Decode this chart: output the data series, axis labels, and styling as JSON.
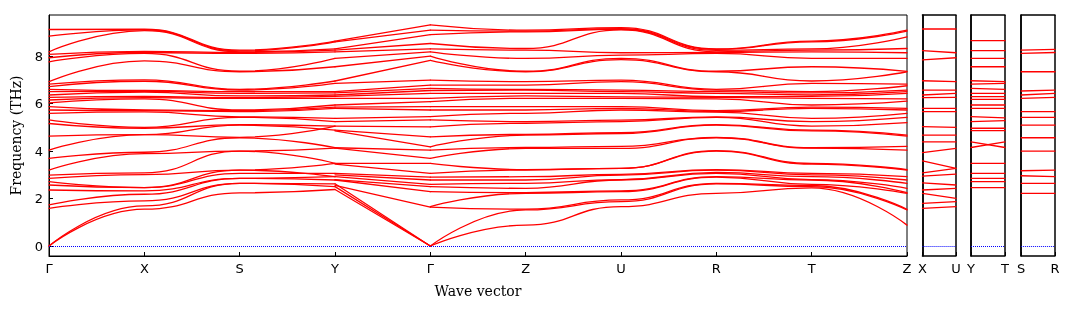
{
  "chart_data": [
    {
      "type": "line",
      "xlabel": "Wave vector",
      "ylabel": "Frequency (THz)",
      "categories": [
        "Γ",
        "X",
        "S",
        "Y",
        "Γ",
        "Z",
        "U",
        "R",
        "T",
        "Z"
      ],
      "ylim": [
        -0.42,
        9.73
      ],
      "yticks": [
        0,
        2,
        4,
        6,
        8
      ],
      "grid": false,
      "ref_lines": [
        {
          "axis": "y",
          "value": 0,
          "color": "#0000ff",
          "line_style": "dotted"
        }
      ],
      "series": [
        {
          "color": "#ff0000",
          "values": [
            0,
            1.55,
            2.24,
            2.38,
            null,
            null,
            null,
            null,
            null,
            null
          ]
        },
        {
          "color": "#ff0000",
          "values": [
            0,
            1.69,
            2.64,
            2.5,
            null,
            null,
            null,
            null,
            null,
            null
          ]
        },
        {
          "color": "#ff0000",
          "values": [
            1.59,
            1.9,
            2.64,
            2.62,
            null,
            null,
            null,
            null,
            null,
            null
          ]
        },
        {
          "color": "#ff0000",
          "values": [
            1.73,
            2.18,
            2.85,
            2.78,
            null,
            null,
            null,
            null,
            null,
            null
          ]
        },
        {
          "color": "#ff0000",
          "values": [
            2.36,
            2.32,
            2.85,
            2.92,
            null,
            null,
            null,
            null,
            null,
            null
          ]
        },
        {
          "color": "#ff0000",
          "values": [
            2.57,
            2.46,
            3.06,
            3.06,
            null,
            null,
            null,
            null,
            null,
            null
          ]
        },
        {
          "color": "#ff0000",
          "values": [
            2.71,
            2.46,
            3.2,
            2.92,
            null,
            null,
            null,
            null,
            null,
            null
          ]
        },
        {
          "color": "#ff0000",
          "values": [
            2.85,
            3.01,
            3.2,
            3.48,
            null,
            null,
            null,
            null,
            null,
            null
          ]
        },
        {
          "color": "#ff0000",
          "values": [
            2.99,
            3.08,
            4.0,
            4.12,
            null,
            null,
            null,
            null,
            null,
            null
          ]
        },
        {
          "color": "#ff0000",
          "values": [
            3.2,
            3.89,
            4.0,
            3.48,
            null,
            null,
            null,
            null,
            null,
            null
          ]
        },
        {
          "color": "#ff0000",
          "values": [
            3.69,
            3.95,
            4.56,
            4.14,
            null,
            null,
            null,
            null,
            null,
            null
          ]
        },
        {
          "color": "#ff0000",
          "values": [
            4.04,
            4.69,
            4.58,
            5.05,
            null,
            null,
            null,
            null,
            null,
            null
          ]
        },
        {
          "color": "#ff0000",
          "values": [
            4.63,
            4.69,
            5.09,
            4.88,
            null,
            null,
            null,
            null,
            null,
            null
          ]
        },
        {
          "color": "#ff0000",
          "values": [
            5.16,
            4.96,
            5.11,
            5.05,
            null,
            null,
            null,
            null,
            null,
            null
          ]
        },
        {
          "color": "#ff0000",
          "values": [
            5.31,
            5.0,
            5.42,
            5.24,
            null,
            null,
            null,
            null,
            null,
            null
          ]
        },
        {
          "color": "#ff0000",
          "values": [
            5.59,
            5.65,
            5.44,
            5.38,
            null,
            null,
            null,
            null,
            null,
            null
          ]
        },
        {
          "color": "#ff0000",
          "values": [
            5.73,
            5.7,
            5.66,
            5.8,
            null,
            null,
            null,
            null,
            null,
            null
          ]
        },
        {
          "color": "#ff0000",
          "values": [
            5.87,
            5.73,
            5.7,
            5.85,
            null,
            null,
            null,
            null,
            null,
            null
          ]
        },
        {
          "color": "#ff0000",
          "values": [
            6.03,
            6.2,
            5.73,
            5.94,
            null,
            null,
            null,
            null,
            null,
            null
          ]
        },
        {
          "color": "#ff0000",
          "values": [
            6.15,
            6.25,
            6.22,
            6.22,
            null,
            null,
            null,
            null,
            null,
            null
          ]
        },
        {
          "color": "#ff0000",
          "values": [
            6.26,
            6.3,
            6.25,
            6.3,
            null,
            null,
            null,
            null,
            null,
            null
          ]
        },
        {
          "color": "#ff0000",
          "values": [
            6.36,
            6.48,
            6.32,
            6.36,
            null,
            null,
            null,
            null,
            null,
            null
          ]
        },
        {
          "color": "#ff0000",
          "values": [
            6.5,
            6.52,
            6.43,
            6.45,
            null,
            null,
            null,
            null,
            null,
            null
          ]
        },
        {
          "color": "#ff0000",
          "values": [
            6.6,
            6.55,
            6.5,
            6.5,
            null,
            null,
            null,
            null,
            null,
            null
          ]
        },
        {
          "color": "#ff0000",
          "values": [
            6.71,
            6.94,
            6.57,
            6.85,
            null,
            null,
            null,
            null,
            null,
            null
          ]
        },
        {
          "color": "#ff0000",
          "values": [
            6.82,
            7.0,
            6.6,
            6.95,
            null,
            null,
            null,
            null,
            null,
            null
          ]
        },
        {
          "color": "#ff0000",
          "values": [
            6.92,
            7.8,
            7.34,
            7.55,
            null,
            null,
            null,
            null,
            null,
            null
          ]
        },
        {
          "color": "#ff0000",
          "values": [
            7.76,
            8.11,
            7.36,
            7.9,
            null,
            null,
            null,
            null,
            null,
            null
          ]
        },
        {
          "color": "#ff0000",
          "values": [
            7.93,
            8.15,
            8.11,
            8.18,
            null,
            null,
            null,
            null,
            null,
            null
          ]
        },
        {
          "color": "#ff0000",
          "values": [
            8.07,
            8.2,
            8.15,
            8.25,
            null,
            null,
            null,
            null,
            null,
            null
          ]
        },
        {
          "color": "#ff0000",
          "values": [
            8.18,
            9.07,
            8.18,
            8.3,
            null,
            null,
            null,
            null,
            null,
            null
          ]
        },
        {
          "color": "#ff0000",
          "values": [
            8.84,
            9.1,
            8.22,
            8.6,
            null,
            null,
            null,
            null,
            null,
            null
          ]
        },
        {
          "color": "#ff0000",
          "values": [
            9.12,
            9.13,
            8.25,
            8.63,
            null,
            null,
            null,
            null,
            null,
            null
          ]
        },
        {
          "color": "#ff0000",
          "values": [
            null,
            null,
            null,
            2.38,
            0,
            null,
            null,
            null,
            null,
            null
          ]
        },
        {
          "color": "#ff0000",
          "values": [
            null,
            null,
            null,
            2.5,
            0,
            null,
            null,
            null,
            null,
            null
          ]
        },
        {
          "color": "#ff0000",
          "values": [
            null,
            null,
            null,
            2.62,
            0,
            null,
            null,
            null,
            null,
            null
          ]
        },
        {
          "color": "#ff0000",
          "values": [
            null,
            null,
            null,
            2.55,
            1.64,
            null,
            null,
            null,
            null,
            null
          ]
        },
        {
          "color": "#ff0000",
          "values": [
            null,
            null,
            null,
            2.78,
            2.29,
            null,
            null,
            null,
            null,
            null
          ]
        },
        {
          "color": "#ff0000",
          "values": [
            null,
            null,
            null,
            2.8,
            2.5,
            null,
            null,
            null,
            null,
            null
          ]
        },
        {
          "color": "#ff0000",
          "values": [
            null,
            null,
            null,
            2.92,
            2.6,
            null,
            null,
            null,
            null,
            null
          ]
        },
        {
          "color": "#ff0000",
          "values": [
            null,
            null,
            null,
            3.0,
            2.78,
            null,
            null,
            null,
            null,
            null
          ]
        },
        {
          "color": "#ff0000",
          "values": [
            null,
            null,
            null,
            3.06,
            2.9,
            null,
            null,
            null,
            null,
            null
          ]
        },
        {
          "color": "#ff0000",
          "values": [
            null,
            null,
            null,
            3.45,
            3.06,
            null,
            null,
            null,
            null,
            null
          ]
        },
        {
          "color": "#ff0000",
          "values": [
            null,
            null,
            null,
            3.48,
            3.48,
            null,
            null,
            null,
            null,
            null
          ]
        },
        {
          "color": "#ff0000",
          "values": [
            null,
            null,
            null,
            4.12,
            3.69,
            null,
            null,
            null,
            null,
            null
          ]
        },
        {
          "color": "#ff0000",
          "values": [
            null,
            null,
            null,
            4.14,
            4.04,
            null,
            null,
            null,
            null,
            null
          ]
        },
        {
          "color": "#ff0000",
          "values": [
            null,
            null,
            null,
            4.85,
            4.18,
            null,
            null,
            null,
            null,
            null
          ]
        },
        {
          "color": "#ff0000",
          "values": [
            null,
            null,
            null,
            4.88,
            4.6,
            null,
            null,
            null,
            null,
            null
          ]
        },
        {
          "color": "#ff0000",
          "values": [
            null,
            null,
            null,
            5.05,
            5.02,
            null,
            null,
            null,
            null,
            null
          ]
        },
        {
          "color": "#ff0000",
          "values": [
            null,
            null,
            null,
            5.24,
            5.31,
            null,
            null,
            null,
            null,
            null
          ]
        },
        {
          "color": "#ff0000",
          "values": [
            null,
            null,
            null,
            5.38,
            5.45,
            null,
            null,
            null,
            null,
            null
          ]
        },
        {
          "color": "#ff0000",
          "values": [
            null,
            null,
            null,
            5.8,
            5.73,
            null,
            null,
            null,
            null,
            null
          ]
        },
        {
          "color": "#ff0000",
          "values": [
            null,
            null,
            null,
            5.85,
            5.87,
            null,
            null,
            null,
            null,
            null
          ]
        },
        {
          "color": "#ff0000",
          "values": [
            null,
            null,
            null,
            5.94,
            6.08,
            null,
            null,
            null,
            null,
            null
          ]
        },
        {
          "color": "#ff0000",
          "values": [
            null,
            null,
            null,
            6.22,
            6.22,
            null,
            null,
            null,
            null,
            null
          ]
        },
        {
          "color": "#ff0000",
          "values": [
            null,
            null,
            null,
            6.3,
            6.43,
            null,
            null,
            null,
            null,
            null
          ]
        },
        {
          "color": "#ff0000",
          "values": [
            null,
            null,
            null,
            6.36,
            6.55,
            null,
            null,
            null,
            null,
            null
          ]
        },
        {
          "color": "#ff0000",
          "values": [
            null,
            null,
            null,
            6.45,
            6.64,
            null,
            null,
            null,
            null,
            null
          ]
        },
        {
          "color": "#ff0000",
          "values": [
            null,
            null,
            null,
            6.5,
            6.78,
            null,
            null,
            null,
            null,
            null
          ]
        },
        {
          "color": "#ff0000",
          "values": [
            null,
            null,
            null,
            6.85,
            6.99,
            null,
            null,
            null,
            null,
            null
          ]
        },
        {
          "color": "#ff0000",
          "values": [
            null,
            null,
            null,
            6.95,
            7.82,
            null,
            null,
            null,
            null,
            null
          ]
        },
        {
          "color": "#ff0000",
          "values": [
            null,
            null,
            null,
            7.55,
            8.0,
            null,
            null,
            null,
            null,
            null
          ]
        },
        {
          "color": "#ff0000",
          "values": [
            null,
            null,
            null,
            7.9,
            8.18,
            null,
            null,
            null,
            null,
            null
          ]
        },
        {
          "color": "#ff0000",
          "values": [
            null,
            null,
            null,
            8.18,
            8.3,
            null,
            null,
            null,
            null,
            null
          ]
        },
        {
          "color": "#ff0000",
          "values": [
            null,
            null,
            null,
            8.25,
            8.53,
            null,
            null,
            null,
            null,
            null
          ]
        },
        {
          "color": "#ff0000",
          "values": [
            null,
            null,
            null,
            8.3,
            8.9,
            null,
            null,
            null,
            null,
            null
          ]
        },
        {
          "color": "#ff0000",
          "values": [
            null,
            null,
            null,
            8.6,
            9.09,
            null,
            null,
            null,
            null,
            null
          ]
        },
        {
          "color": "#ff0000",
          "values": [
            null,
            null,
            null,
            8.63,
            9.31,
            null,
            null,
            null,
            null,
            null
          ]
        },
        {
          "color": "#ff0000",
          "values": [
            null,
            null,
            null,
            null,
            0,
            0.88,
            1.66,
            2.22,
            2.45,
            0.88
          ]
        },
        {
          "color": "#ff0000",
          "values": [
            null,
            null,
            null,
            null,
            0,
            1.52,
            1.87,
            2.62,
            2.5,
            1.52
          ]
        },
        {
          "color": "#ff0000",
          "values": [
            null,
            null,
            null,
            null,
            1.64,
            1.55,
            1.94,
            2.64,
            2.55,
            1.55
          ]
        },
        {
          "color": "#ff0000",
          "values": [
            null,
            null,
            null,
            null,
            1.66,
            2.22,
            2.29,
            2.9,
            2.6,
            2.22
          ]
        },
        {
          "color": "#ff0000",
          "values": [
            null,
            null,
            null,
            null,
            2.29,
            2.25,
            2.32,
            2.92,
            2.78,
            2.25
          ]
        },
        {
          "color": "#ff0000",
          "values": [
            null,
            null,
            null,
            null,
            2.5,
            2.43,
            2.78,
            3.06,
            2.8,
            2.43
          ]
        },
        {
          "color": "#ff0000",
          "values": [
            null,
            null,
            null,
            null,
            2.6,
            2.64,
            2.8,
            3.1,
            2.92,
            2.64
          ]
        },
        {
          "color": "#ff0000",
          "values": [
            null,
            null,
            null,
            null,
            2.78,
            2.78,
            2.99,
            3.2,
            3.0,
            2.78
          ]
        },
        {
          "color": "#ff0000",
          "values": [
            null,
            null,
            null,
            null,
            2.9,
            2.92,
            3.02,
            3.22,
            3.06,
            2.92
          ]
        },
        {
          "color": "#ff0000",
          "values": [
            null,
            null,
            null,
            null,
            3.06,
            3.2,
            3.27,
            4.0,
            3.45,
            3.2
          ]
        },
        {
          "color": "#ff0000",
          "values": [
            null,
            null,
            null,
            null,
            3.48,
            3.22,
            3.27,
            4.02,
            3.48,
            3.22
          ]
        },
        {
          "color": "#ff0000",
          "values": [
            null,
            null,
            null,
            null,
            3.69,
            4.11,
            4.11,
            4.56,
            4.12,
            4.04
          ]
        },
        {
          "color": "#ff0000",
          "values": [
            null,
            null,
            null,
            null,
            4.04,
            4.15,
            4.2,
            4.58,
            4.14,
            4.2
          ]
        },
        {
          "color": "#ff0000",
          "values": [
            null,
            null,
            null,
            null,
            4.18,
            4.67,
            4.74,
            5.09,
            4.85,
            4.63
          ]
        },
        {
          "color": "#ff0000",
          "values": [
            null,
            null,
            null,
            null,
            4.6,
            4.7,
            4.78,
            5.11,
            4.88,
            4.67
          ]
        },
        {
          "color": "#ff0000",
          "values": [
            null,
            null,
            null,
            null,
            5.02,
            5.17,
            5.24,
            5.42,
            5.05,
            5.2
          ]
        },
        {
          "color": "#ff0000",
          "values": [
            null,
            null,
            null,
            null,
            5.31,
            5.24,
            5.3,
            5.44,
            5.24,
            5.42
          ]
        },
        {
          "color": "#ff0000",
          "values": [
            null,
            null,
            null,
            null,
            5.45,
            5.59,
            5.73,
            5.64,
            5.38,
            5.59
          ]
        },
        {
          "color": "#ff0000",
          "values": [
            null,
            null,
            null,
            null,
            5.73,
            5.73,
            5.8,
            5.66,
            5.8,
            5.73
          ]
        },
        {
          "color": "#ff0000",
          "values": [
            null,
            null,
            null,
            null,
            5.87,
            5.87,
            5.87,
            5.7,
            5.85,
            5.8
          ]
        },
        {
          "color": "#ff0000",
          "values": [
            null,
            null,
            null,
            null,
            6.08,
            6.22,
            6.22,
            6.2,
            5.94,
            6.1
          ]
        },
        {
          "color": "#ff0000",
          "values": [
            null,
            null,
            null,
            null,
            6.22,
            6.32,
            6.28,
            6.26,
            6.22,
            6.2
          ]
        },
        {
          "color": "#ff0000",
          "values": [
            null,
            null,
            null,
            null,
            6.43,
            6.43,
            6.43,
            6.29,
            6.3,
            6.43
          ]
        },
        {
          "color": "#ff0000",
          "values": [
            null,
            null,
            null,
            null,
            6.55,
            6.57,
            6.5,
            6.43,
            6.36,
            6.5
          ]
        },
        {
          "color": "#ff0000",
          "values": [
            null,
            null,
            null,
            null,
            6.64,
            6.6,
            6.57,
            6.5,
            6.45,
            6.57
          ]
        },
        {
          "color": "#ff0000",
          "values": [
            null,
            null,
            null,
            null,
            6.78,
            6.78,
            6.92,
            6.57,
            6.5,
            6.75
          ]
        },
        {
          "color": "#ff0000",
          "values": [
            null,
            null,
            null,
            null,
            6.99,
            6.92,
            6.99,
            6.6,
            6.85,
            6.82
          ]
        },
        {
          "color": "#ff0000",
          "values": [
            null,
            null,
            null,
            null,
            7.82,
            7.34,
            7.85,
            7.34,
            6.95,
            7.34
          ]
        },
        {
          "color": "#ff0000",
          "values": [
            null,
            null,
            null,
            null,
            8.0,
            7.36,
            7.9,
            7.36,
            7.55,
            7.36
          ]
        },
        {
          "color": "#ff0000",
          "values": [
            null,
            null,
            null,
            null,
            8.18,
            7.9,
            8.04,
            8.11,
            7.9,
            7.9
          ]
        },
        {
          "color": "#ff0000",
          "values": [
            null,
            null,
            null,
            null,
            8.3,
            8.25,
            8.14,
            8.15,
            8.18,
            8.14
          ]
        },
        {
          "color": "#ff0000",
          "values": [
            null,
            null,
            null,
            null,
            8.53,
            8.32,
            9.1,
            8.18,
            8.25,
            8.32
          ]
        },
        {
          "color": "#ff0000",
          "values": [
            null,
            null,
            null,
            null,
            8.9,
            9.02,
            9.13,
            8.24,
            8.3,
            8.81
          ]
        },
        {
          "color": "#ff0000",
          "values": [
            null,
            null,
            null,
            null,
            9.09,
            9.05,
            9.16,
            8.28,
            8.6,
            9.05
          ]
        },
        {
          "color": "#ff0000",
          "values": [
            null,
            null,
            null,
            null,
            9.31,
            9.09,
            9.2,
            8.3,
            8.63,
            9.09
          ]
        }
      ]
    },
    {
      "type": "line",
      "categories": [
        "X",
        "U"
      ],
      "ylim": [
        -0.42,
        9.73
      ],
      "yticks": [
        0,
        2,
        4,
        6,
        8
      ],
      "grid": "x",
      "tick_labels": "x",
      "ref_lines": [
        {
          "axis": "y",
          "value": 0,
          "color": "#0000ff",
          "line_style": "dotted"
        }
      ],
      "series": [
        {
          "color": "#ff0000",
          "values": [
            1.59,
            1.66
          ]
        },
        {
          "color": "#ff0000",
          "values": [
            1.8,
            1.87
          ]
        },
        {
          "color": "#ff0000",
          "values": [
            2.22,
            2.01
          ]
        },
        {
          "color": "#ff0000",
          "values": [
            2.36,
            2.43
          ]
        },
        {
          "color": "#ff0000",
          "values": [
            2.66,
            2.57
          ]
        },
        {
          "color": "#ff0000",
          "values": [
            2.94,
            3.03
          ]
        },
        {
          "color": "#ff0000",
          "values": [
            3.08,
            3.27
          ]
        },
        {
          "color": "#ff0000",
          "values": [
            3.59,
            3.27
          ]
        },
        {
          "color": "#ff0000",
          "values": [
            3.93,
            4.11
          ]
        },
        {
          "color": "#ff0000",
          "values": [
            4.39,
            4.39
          ]
        },
        {
          "color": "#ff0000",
          "values": [
            4.67,
            4.67
          ]
        },
        {
          "color": "#ff0000",
          "values": [
            5.03,
            5.0
          ]
        },
        {
          "color": "#ff0000",
          "values": [
            5.66,
            5.66
          ]
        },
        {
          "color": "#ff0000",
          "values": [
            5.8,
            5.8
          ]
        },
        {
          "color": "#ff0000",
          "values": [
            6.25,
            6.26
          ]
        },
        {
          "color": "#ff0000",
          "values": [
            6.36,
            6.43
          ]
        },
        {
          "color": "#ff0000",
          "values": [
            6.57,
            6.57
          ]
        },
        {
          "color": "#ff0000",
          "values": [
            6.96,
            6.92
          ]
        },
        {
          "color": "#ff0000",
          "values": [
            7.84,
            7.93
          ]
        },
        {
          "color": "#ff0000",
          "values": [
            8.23,
            8.14
          ]
        },
        {
          "color": "#ff0000",
          "values": [
            9.14,
            9.14
          ]
        }
      ]
    },
    {
      "type": "line",
      "categories": [
        "Y",
        "T"
      ],
      "ylim": [
        -0.42,
        9.73
      ],
      "yticks": [
        0,
        2,
        4,
        6,
        8
      ],
      "grid": "x",
      "tick_labels": "x",
      "ref_lines": [
        {
          "axis": "y",
          "value": 0,
          "color": "#0000ff",
          "line_style": "dotted"
        }
      ],
      "series": [
        {
          "color": "#ff0000",
          "values": [
            2.46,
            2.46
          ]
        },
        {
          "color": "#ff0000",
          "values": [
            2.71,
            2.71
          ]
        },
        {
          "color": "#ff0000",
          "values": [
            2.85,
            2.85
          ]
        },
        {
          "color": "#ff0000",
          "values": [
            3.06,
            3.06
          ]
        },
        {
          "color": "#ff0000",
          "values": [
            3.48,
            3.48
          ]
        },
        {
          "color": "#ff0000",
          "values": [
            4.15,
            4.39
          ]
        },
        {
          "color": "#ff0000",
          "values": [
            4.39,
            4.15
          ]
        },
        {
          "color": "#ff0000",
          "values": [
            4.86,
            4.86
          ]
        },
        {
          "color": "#ff0000",
          "values": [
            4.96,
            4.96
          ]
        },
        {
          "color": "#ff0000",
          "values": [
            5.24,
            5.28
          ]
        },
        {
          "color": "#ff0000",
          "values": [
            5.45,
            5.4
          ]
        },
        {
          "color": "#ff0000",
          "values": [
            5.8,
            5.8
          ]
        },
        {
          "color": "#ff0000",
          "values": [
            5.94,
            5.94
          ]
        },
        {
          "color": "#ff0000",
          "values": [
            6.18,
            6.18
          ]
        },
        {
          "color": "#ff0000",
          "values": [
            6.29,
            6.29
          ]
        },
        {
          "color": "#ff0000",
          "values": [
            6.43,
            6.43
          ]
        },
        {
          "color": "#ff0000",
          "values": [
            6.64,
            6.6
          ]
        },
        {
          "color": "#ff0000",
          "values": [
            6.82,
            6.85
          ]
        },
        {
          "color": "#ff0000",
          "values": [
            6.96,
            6.92
          ]
        },
        {
          "color": "#ff0000",
          "values": [
            7.55,
            7.55
          ]
        },
        {
          "color": "#ff0000",
          "values": [
            7.9,
            7.9
          ]
        },
        {
          "color": "#ff0000",
          "values": [
            8.23,
            8.23
          ]
        },
        {
          "color": "#ff0000",
          "values": [
            8.65,
            8.65
          ]
        }
      ]
    },
    {
      "type": "line",
      "categories": [
        "S",
        "R"
      ],
      "ylim": [
        -0.42,
        9.73
      ],
      "yticks": [
        0,
        2,
        4,
        6,
        8
      ],
      "grid": "x",
      "tick_labels": "x",
      "ref_lines": [
        {
          "axis": "y",
          "value": 0,
          "color": "#0000ff",
          "line_style": "dotted"
        }
      ],
      "series": [
        {
          "color": "#ff0000",
          "values": [
            2.22,
            2.22
          ]
        },
        {
          "color": "#ff0000",
          "values": [
            2.64,
            2.64
          ]
        },
        {
          "color": "#ff0000",
          "values": [
            2.96,
            2.92
          ]
        },
        {
          "color": "#ff0000",
          "values": [
            3.17,
            3.2
          ]
        },
        {
          "color": "#ff0000",
          "values": [
            4.0,
            4.0
          ]
        },
        {
          "color": "#ff0000",
          "values": [
            4.56,
            4.56
          ]
        },
        {
          "color": "#ff0000",
          "values": [
            5.09,
            5.09
          ]
        },
        {
          "color": "#ff0000",
          "values": [
            5.42,
            5.42
          ]
        },
        {
          "color": "#ff0000",
          "values": [
            5.66,
            5.66
          ]
        },
        {
          "color": "#ff0000",
          "values": [
            6.22,
            6.26
          ]
        },
        {
          "color": "#ff0000",
          "values": [
            6.36,
            6.43
          ]
        },
        {
          "color": "#ff0000",
          "values": [
            6.53,
            6.57
          ]
        },
        {
          "color": "#ff0000",
          "values": [
            7.34,
            7.34
          ]
        },
        {
          "color": "#ff0000",
          "values": [
            8.11,
            8.15
          ]
        },
        {
          "color": "#ff0000",
          "values": [
            8.25,
            8.28
          ]
        }
      ]
    }
  ]
}
